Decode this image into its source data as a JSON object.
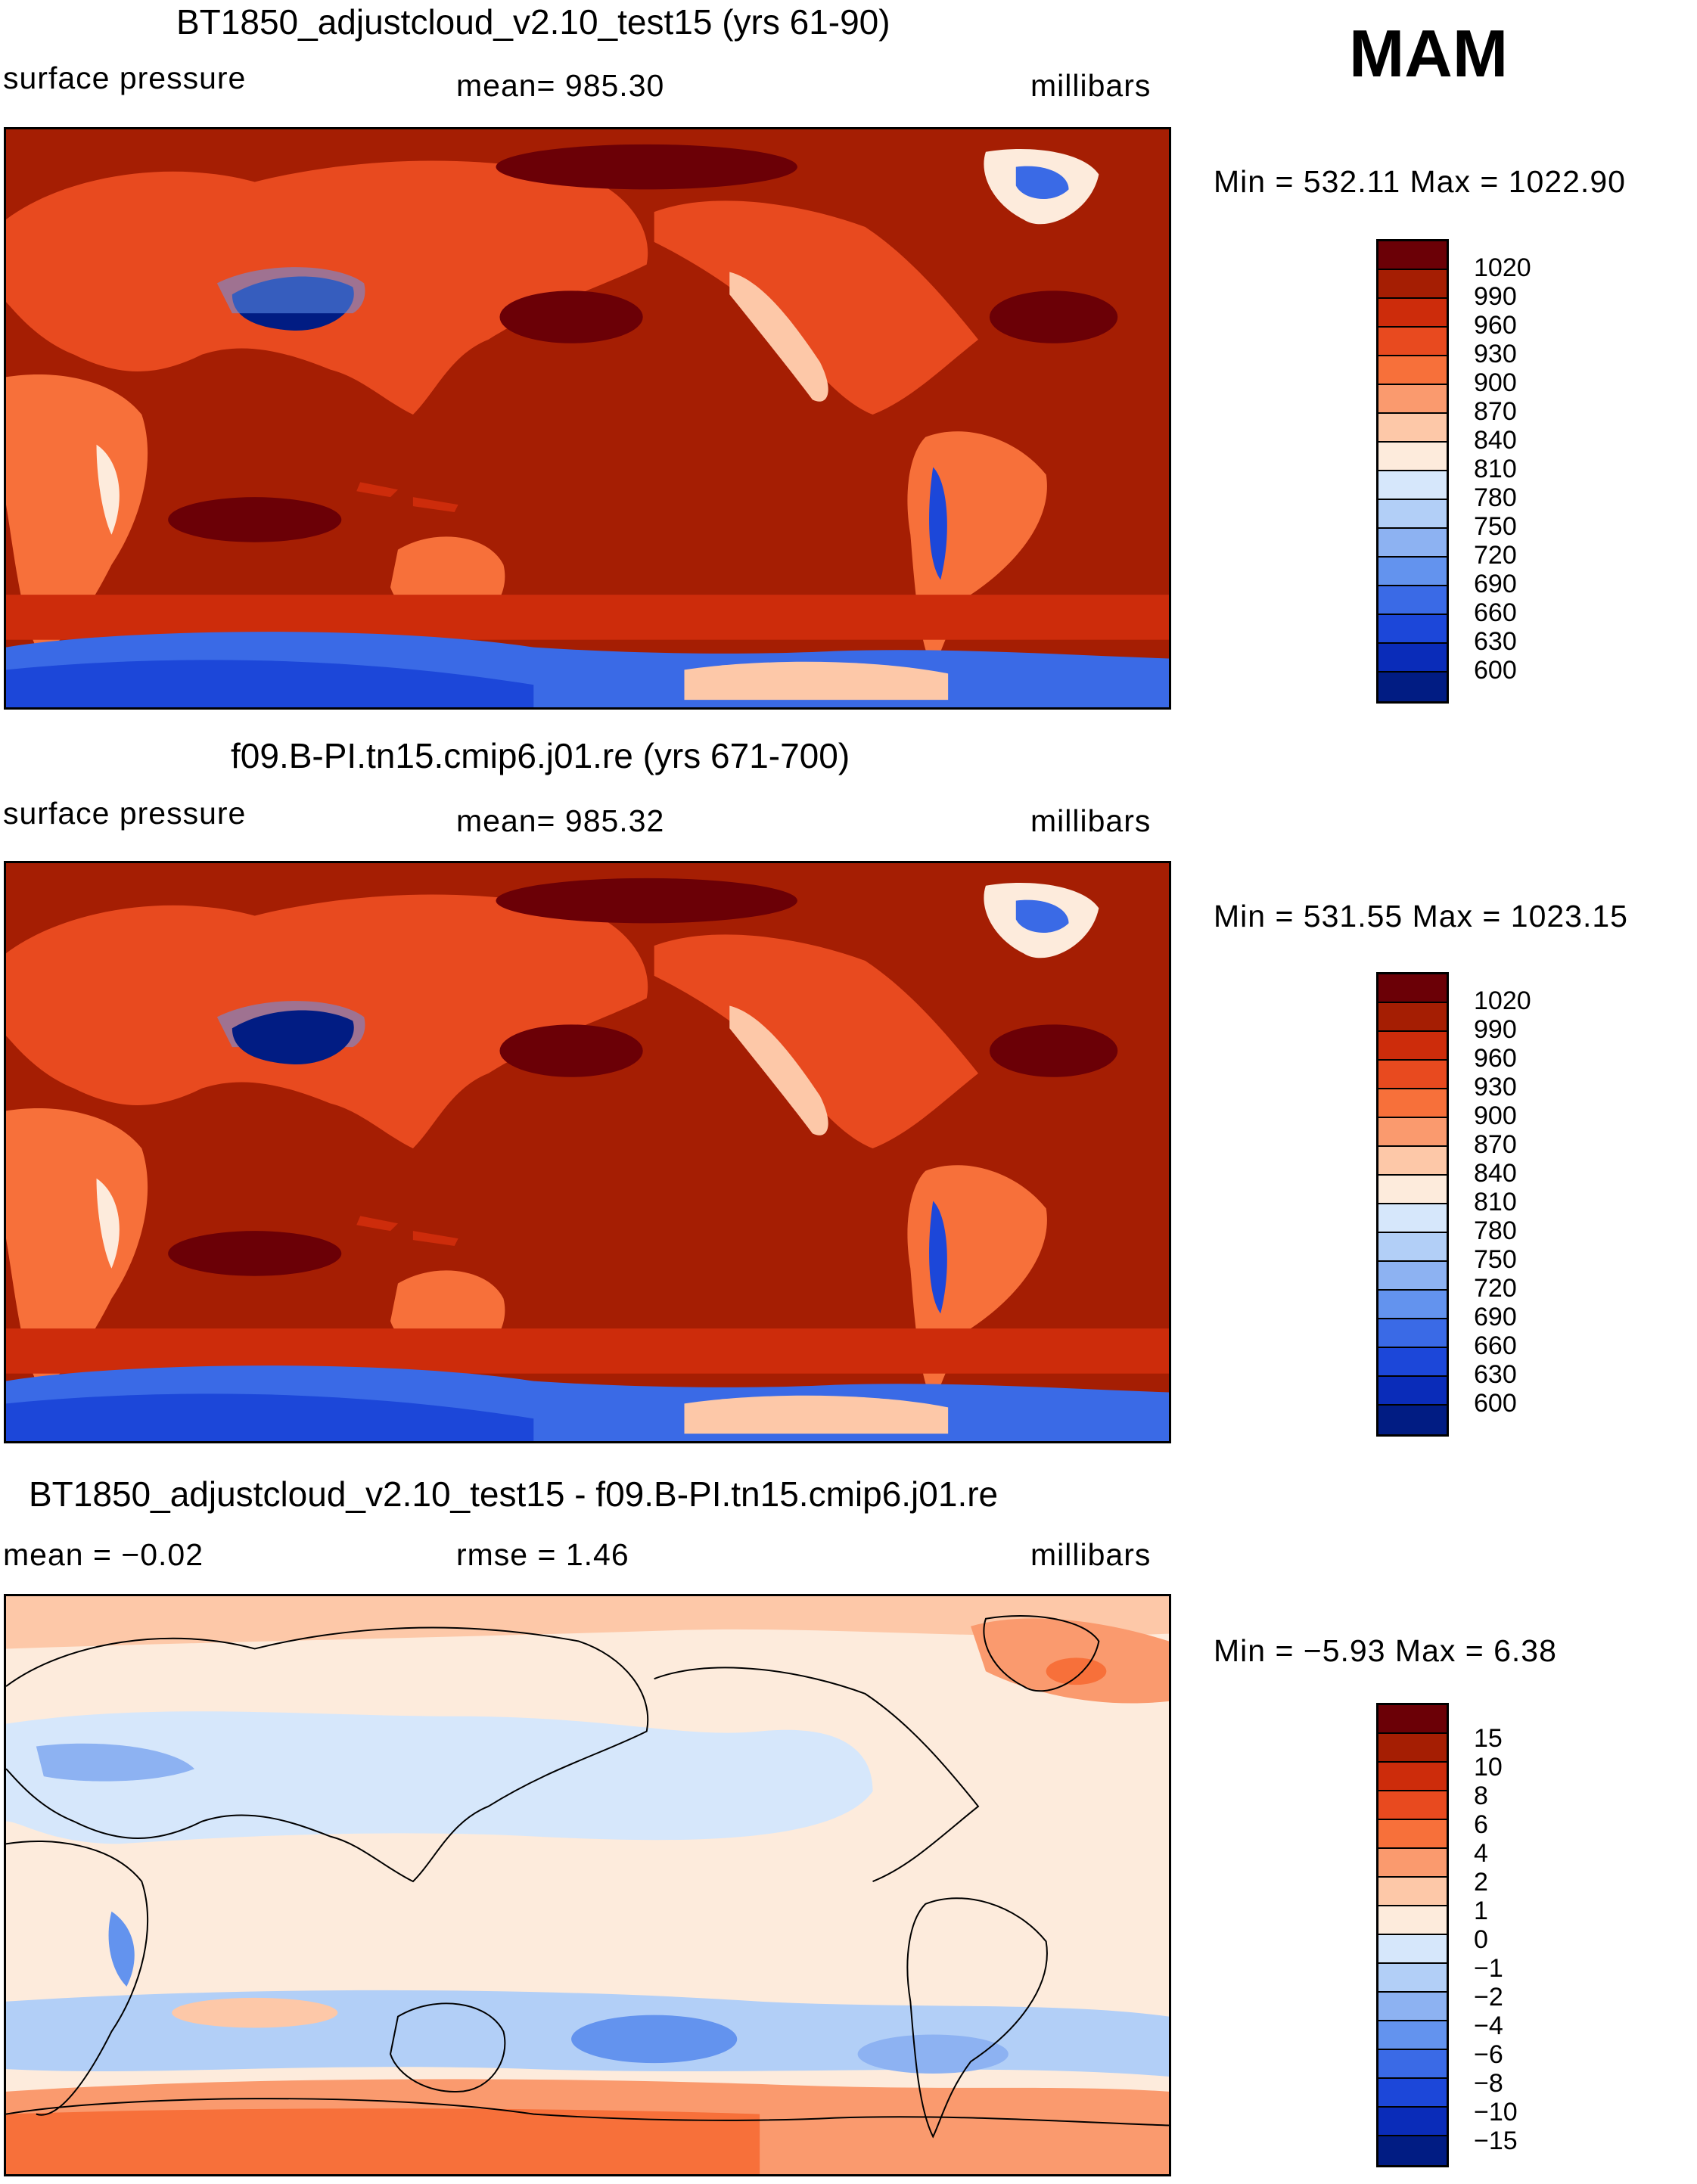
{
  "season": "MAM",
  "units": "millibars",
  "panels": [
    {
      "title": "BT1850_adjustcloud_v2.10_test15 (yrs 61-90)",
      "left_label": "surface pressure",
      "center_label": "mean= 985.30",
      "right_label": "millibars",
      "minmax": "Min = 532.11 Max = 1022.90",
      "icons": {
        "map": "world-map-pacific-centered-icon"
      }
    },
    {
      "title": "f09.B-PI.tn15.cmip6.j01.re (yrs 671-700)",
      "left_label": "surface pressure",
      "center_label": "mean= 985.32",
      "right_label": "millibars",
      "minmax": "Min = 531.55 Max = 1023.15",
      "icons": {
        "map": "world-map-pacific-centered-icon"
      }
    },
    {
      "title": "BT1850_adjustcloud_v2.10_test15 - f09.B-PI.tn15.cmip6.j01.re",
      "left_label": "mean =   −0.02",
      "center_label": "rmse =     1.46",
      "right_label": "millibars",
      "minmax": "Min =   −5.93 Max =     6.38",
      "icons": {
        "map": "world-map-pacific-centered-icon"
      }
    }
  ],
  "colorbars": {
    "absolute": {
      "labels": [
        "1020",
        "990",
        "960",
        "930",
        "900",
        "870",
        "840",
        "810",
        "780",
        "750",
        "720",
        "690",
        "660",
        "630",
        "600"
      ],
      "colors": [
        "#6b0006",
        "#a51e03",
        "#cd2c0b",
        "#e84a1f",
        "#f7703a",
        "#fa9a6e",
        "#fdc8a8",
        "#fdebdc",
        "#d6e7fb",
        "#b2cff7",
        "#8db2f2",
        "#6393ee",
        "#3a6ae6",
        "#1c47d9",
        "#0a2cb9",
        "#011c83"
      ]
    },
    "difference": {
      "labels": [
        "15",
        "10",
        "8",
        "6",
        "4",
        "2",
        "1",
        "0",
        "−1",
        "−2",
        "−4",
        "−6",
        "−8",
        "−10",
        "−15"
      ],
      "colors": [
        "#6b0006",
        "#a51e03",
        "#cd2c0b",
        "#e84a1f",
        "#f7703a",
        "#fa9a6e",
        "#fdc8a8",
        "#fdebdc",
        "#d6e7fb",
        "#b2cff7",
        "#8db2f2",
        "#6393ee",
        "#3a6ae6",
        "#1c47d9",
        "#0a2cb9",
        "#011c83"
      ]
    }
  }
}
